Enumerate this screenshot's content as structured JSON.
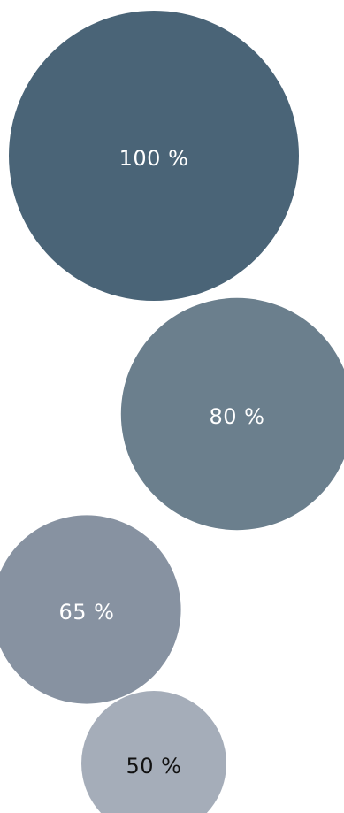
{
  "chart_data": {
    "type": "bubble",
    "title": "",
    "categories": [
      "100 %",
      "80 %",
      "65 %",
      "50 %"
    ],
    "values": [
      100,
      80,
      65,
      50
    ],
    "colors": [
      "#4a6477",
      "#6b7f8d",
      "#8792a1",
      "#a5adb9"
    ],
    "label_colors": [
      "#ffffff",
      "#ffffff",
      "#ffffff",
      "#111111"
    ],
    "grid": false,
    "legend": "none"
  }
}
